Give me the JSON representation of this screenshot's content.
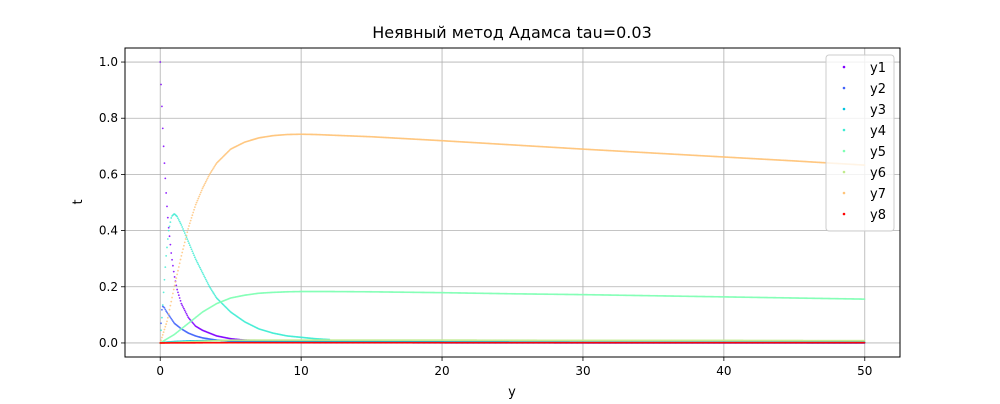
{
  "chart_data": {
    "type": "scatter",
    "title": "Неявный метод Адамса tau=0.03",
    "xlabel": "y",
    "ylabel": "t",
    "xlim": [
      -2.5,
      52.5
    ],
    "ylim": [
      -0.05,
      1.05
    ],
    "xticks": [
      0,
      10,
      20,
      30,
      40,
      50
    ],
    "yticks": [
      0.0,
      0.2,
      0.4,
      0.6,
      0.8,
      1.0
    ],
    "xtick_labels": [
      "0",
      "10",
      "20",
      "30",
      "40",
      "50"
    ],
    "ytick_labels": [
      "0.0",
      "0.2",
      "0.4",
      "0.6",
      "0.8",
      "1.0"
    ],
    "grid": true,
    "legend_position": "top-right",
    "series": [
      {
        "name": "y1",
        "color": "#8000ff",
        "x": [
          0,
          0.03,
          0.06,
          0.1,
          0.15,
          0.2,
          0.3,
          0.4,
          0.5,
          0.6,
          0.8,
          1.0,
          1.2,
          1.5,
          2.0,
          2.5,
          3.0,
          4.0,
          5.0,
          6.0,
          8.0,
          10.0,
          15.0,
          20.0,
          30.0,
          40.0,
          50.0
        ],
        "y": [
          1.0,
          0.96,
          0.92,
          0.87,
          0.8,
          0.74,
          0.64,
          0.55,
          0.47,
          0.41,
          0.31,
          0.24,
          0.19,
          0.14,
          0.09,
          0.06,
          0.045,
          0.025,
          0.015,
          0.01,
          0.006,
          0.004,
          0.002,
          0.001,
          0.0005,
          0.0003,
          0.0002
        ]
      },
      {
        "name": "y2",
        "color": "#4062fa",
        "x": [
          0,
          0.05,
          0.1,
          0.15,
          0.2,
          0.3,
          0.4,
          0.6,
          0.8,
          1.0,
          1.5,
          2.0,
          2.5,
          3.0,
          4.0,
          5.0,
          6.0,
          8.0,
          10.0,
          20.0,
          30.0,
          40.0,
          50.0
        ],
        "y": [
          0.0,
          0.06,
          0.11,
          0.13,
          0.13,
          0.125,
          0.115,
          0.1,
          0.085,
          0.07,
          0.05,
          0.035,
          0.025,
          0.018,
          0.01,
          0.006,
          0.004,
          0.002,
          0.001,
          0.0005,
          0.0003,
          0.0002,
          0.0001
        ]
      },
      {
        "name": "y3",
        "color": "#00c4df",
        "x": [
          0,
          0.5,
          1.0,
          2.0,
          3.0,
          4.0,
          6.0,
          8.0,
          10.0,
          15.0,
          20.0,
          30.0,
          40.0,
          50.0
        ],
        "y": [
          0.0,
          0.003,
          0.005,
          0.007,
          0.008,
          0.008,
          0.008,
          0.007,
          0.006,
          0.005,
          0.004,
          0.003,
          0.003,
          0.003
        ]
      },
      {
        "name": "y4",
        "color": "#40ecd4",
        "x": [
          0,
          0.2,
          0.4,
          0.6,
          0.8,
          1.0,
          1.2,
          1.5,
          2.0,
          2.5,
          3.0,
          3.5,
          4.0,
          5.0,
          6.0,
          7.0,
          8.0,
          9.0,
          10.0,
          11.0,
          12.0
        ],
        "y": [
          0.0,
          0.15,
          0.3,
          0.4,
          0.45,
          0.46,
          0.45,
          0.42,
          0.36,
          0.3,
          0.25,
          0.2,
          0.16,
          0.11,
          0.075,
          0.05,
          0.035,
          0.025,
          0.02,
          0.015,
          0.012
        ]
      },
      {
        "name": "y5",
        "color": "#80ffb4",
        "x": [
          0,
          1.0,
          2.0,
          3.0,
          4.0,
          5.0,
          6.0,
          7.0,
          8.0,
          9.0,
          10.0,
          12.0,
          15.0,
          20.0,
          25.0,
          30.0,
          35.0,
          40.0,
          45.0,
          50.0
        ],
        "y": [
          0.0,
          0.03,
          0.07,
          0.11,
          0.14,
          0.16,
          0.17,
          0.177,
          0.18,
          0.182,
          0.183,
          0.183,
          0.182,
          0.179,
          0.175,
          0.172,
          0.168,
          0.164,
          0.16,
          0.156
        ]
      },
      {
        "name": "y6",
        "color": "#c0eb8d",
        "x": [
          0,
          5.0,
          10.0,
          20.0,
          30.0,
          40.0,
          50.0
        ],
        "y": [
          0.0,
          0.01,
          0.01,
          0.01,
          0.009,
          0.009,
          0.008
        ]
      },
      {
        "name": "y7",
        "color": "#ffc47a",
        "x": [
          0,
          0.5,
          1.0,
          1.5,
          2.0,
          2.5,
          3.0,
          3.5,
          4.0,
          5.0,
          6.0,
          7.0,
          8.0,
          9.0,
          10.0,
          11.0,
          12.0,
          15.0,
          20.0,
          25.0,
          30.0,
          35.0,
          40.0,
          45.0,
          50.0
        ],
        "y": [
          0.0,
          0.08,
          0.2,
          0.31,
          0.41,
          0.49,
          0.55,
          0.6,
          0.64,
          0.69,
          0.715,
          0.73,
          0.738,
          0.742,
          0.743,
          0.742,
          0.74,
          0.734,
          0.72,
          0.705,
          0.69,
          0.676,
          0.662,
          0.648,
          0.633
        ]
      },
      {
        "name": "y8",
        "color": "#ff0000",
        "x": [
          0,
          5.0,
          10.0,
          20.0,
          30.0,
          40.0,
          50.0
        ],
        "y": [
          0.0,
          0.001,
          0.001,
          0.001,
          0.001,
          0.001,
          0.001
        ]
      }
    ]
  }
}
